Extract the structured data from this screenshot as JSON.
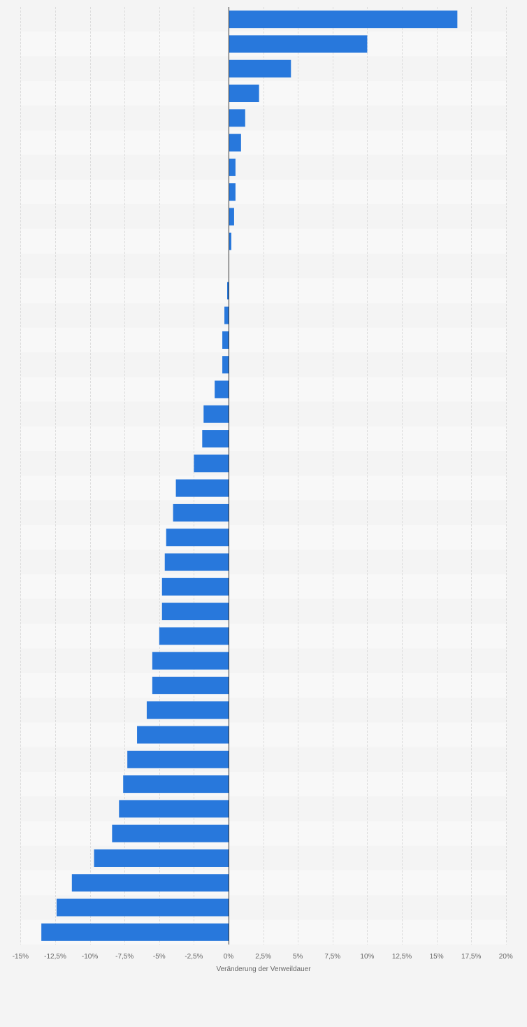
{
  "chart_data": {
    "type": "bar",
    "orientation": "horizontal",
    "xlabel": "Veränderung der Verweildauer",
    "xlim": [
      -15,
      20
    ],
    "xticks": [
      -15,
      -12.5,
      -10,
      -7.5,
      -5,
      -2.5,
      0,
      2.5,
      5,
      7.5,
      10,
      12.5,
      15,
      17.5,
      20
    ],
    "xtick_labels": [
      "-15%",
      "-12,5%",
      "-10%",
      "-7,5%",
      "-5%",
      "-2,5%",
      "0%",
      "2,5%",
      "5%",
      "7,5%",
      "10%",
      "12,5%",
      "15%",
      "17,5%",
      "20%"
    ],
    "grid": true,
    "values": [
      16.5,
      10.0,
      4.5,
      2.2,
      1.2,
      0.9,
      0.5,
      0.5,
      0.4,
      0.2,
      0.05,
      -0.1,
      -0.3,
      -0.45,
      -0.45,
      -1.0,
      -1.8,
      -1.9,
      -2.5,
      -3.8,
      -4.0,
      -4.5,
      -4.6,
      -4.8,
      -4.8,
      -5.0,
      -5.5,
      -5.5,
      -5.9,
      -6.6,
      -7.3,
      -7.6,
      -7.9,
      -8.4,
      -9.7,
      -11.3,
      -12.4,
      -13.5
    ],
    "bar_color": "#2878dc"
  }
}
